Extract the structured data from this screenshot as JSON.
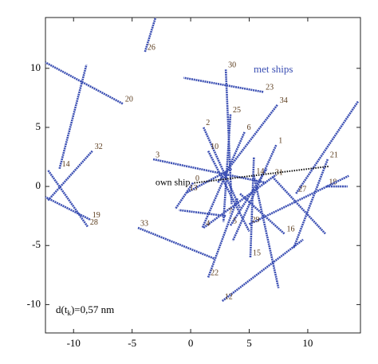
{
  "chart_data": {
    "type": "trajectories",
    "xlim": [
      -12.4,
      14.5
    ],
    "ylim": [
      -12.4,
      14.3
    ],
    "xticks": [
      -10,
      -5,
      0,
      5,
      10
    ],
    "yticks": [
      -10,
      -5,
      0,
      5,
      10
    ],
    "met_ships_label": "met ships",
    "distance_label": [
      "d(t",
      "k",
      ")=0,57 nm"
    ],
    "color": "#3b4fb3",
    "own_ship": {
      "name": "own ship",
      "color": "#111111",
      "x": [
        0.3,
        11.8
      ],
      "y": [
        0.3,
        1.7
      ]
    },
    "series": [
      {
        "name": "26",
        "x": [
          -3.9,
          -3.0
        ],
        "y": [
          11.4,
          14.3
        ]
      },
      {
        "name": "20",
        "x": [
          -5.8,
          -12.4
        ],
        "y": [
          7.0,
          10.5
        ]
      },
      {
        "name": "14",
        "x": [
          -11.2,
          -8.9
        ],
        "y": [
          1.5,
          10.3
        ]
      },
      {
        "name": "32",
        "x": [
          -8.4,
          -12.2
        ],
        "y": [
          3.0,
          -1.2
        ]
      },
      {
        "name": "28",
        "x": [
          -8.8,
          -12.2
        ],
        "y": [
          -3.4,
          1.4
        ]
      },
      {
        "name": "19",
        "x": [
          -8.6,
          -12.4
        ],
        "y": [
          -2.8,
          -0.9
        ]
      },
      {
        "name": "33",
        "x": [
          -4.5,
          2.0
        ],
        "y": [
          -3.5,
          -6.1
        ]
      },
      {
        "name": "3",
        "x": [
          -3.2,
          6.5
        ],
        "y": [
          2.3,
          0.3
        ]
      },
      {
        "name": "23",
        "x": [
          6.2,
          -0.6
        ],
        "y": [
          8.0,
          9.2
        ]
      },
      {
        "name": "30",
        "x": [
          3.0,
          3.5
        ],
        "y": [
          9.9,
          -1.5
        ]
      },
      {
        "name": "34",
        "x": [
          7.4,
          2.3
        ],
        "y": [
          6.9,
          0.3
        ]
      },
      {
        "name": "25",
        "x": [
          3.4,
          2.8
        ],
        "y": [
          6.1,
          -3.0
        ]
      },
      {
        "name": "2",
        "x": [
          1.1,
          4.2
        ],
        "y": [
          5.0,
          -1.8
        ]
      },
      {
        "name": "10",
        "x": [
          1.5,
          5.0
        ],
        "y": [
          3.0,
          -3.8
        ]
      },
      {
        "name": "6",
        "x": [
          4.6,
          1.0
        ],
        "y": [
          4.6,
          -3.5
        ]
      },
      {
        "name": "1",
        "x": [
          7.3,
          3.6
        ],
        "y": [
          3.5,
          -4.6
        ]
      },
      {
        "name": "21",
        "x": [
          11.7,
          8.8
        ],
        "y": [
          2.3,
          -5.2
        ]
      },
      {
        "name": "18",
        "x": [
          11.6,
          13.4
        ],
        "y": [
          0,
          0
        ]
      },
      {
        "name": "27",
        "x": [
          9.0,
          14.3
        ],
        "y": [
          -0.6,
          7.2
        ]
      },
      {
        "name": "16",
        "x": [
          8.0,
          4.2
        ],
        "y": [
          -4.0,
          -0.6
        ]
      },
      {
        "name": "29",
        "x": [
          5.0,
          13.5
        ],
        "y": [
          -3.2,
          0.9
        ]
      },
      {
        "name": "15",
        "x": [
          5.1,
          5.4
        ],
        "y": [
          -6.0,
          2.5
        ]
      },
      {
        "name": "22",
        "x": [
          1.5,
          4.0
        ],
        "y": [
          -7.7,
          -1.0
        ]
      },
      {
        "name": "12",
        "x": [
          2.7,
          9.6
        ],
        "y": [
          -9.7,
          -4.5
        ]
      },
      {
        "name": "4",
        "x": [
          1.1,
          7.3
        ],
        "y": [
          -3.5,
          1.0
        ]
      },
      {
        "name": "5",
        "x": [
          3.4,
          6.5
        ],
        "y": [
          -3.3,
          1.5
        ]
      },
      {
        "name": "7",
        "x": [
          3.0,
          -1.0
        ],
        "y": [
          -2.5,
          -2.0
        ]
      },
      {
        "name": "0",
        "x": [
          0.2,
          -1.3
        ],
        "y": [
          0.3,
          -1.9
        ]
      },
      {
        "name": "13",
        "x": [
          -0.3,
          3.5
        ],
        "y": [
          -0.5,
          1.5
        ]
      },
      {
        "name": "31",
        "x": [
          7.0,
          11.5
        ],
        "y": [
          0.8,
          -4.0
        ]
      },
      {
        "name": "14",
        "x": [
          5.4,
          7.5
        ],
        "y": [
          0.9,
          -8.6
        ]
      }
    ]
  }
}
